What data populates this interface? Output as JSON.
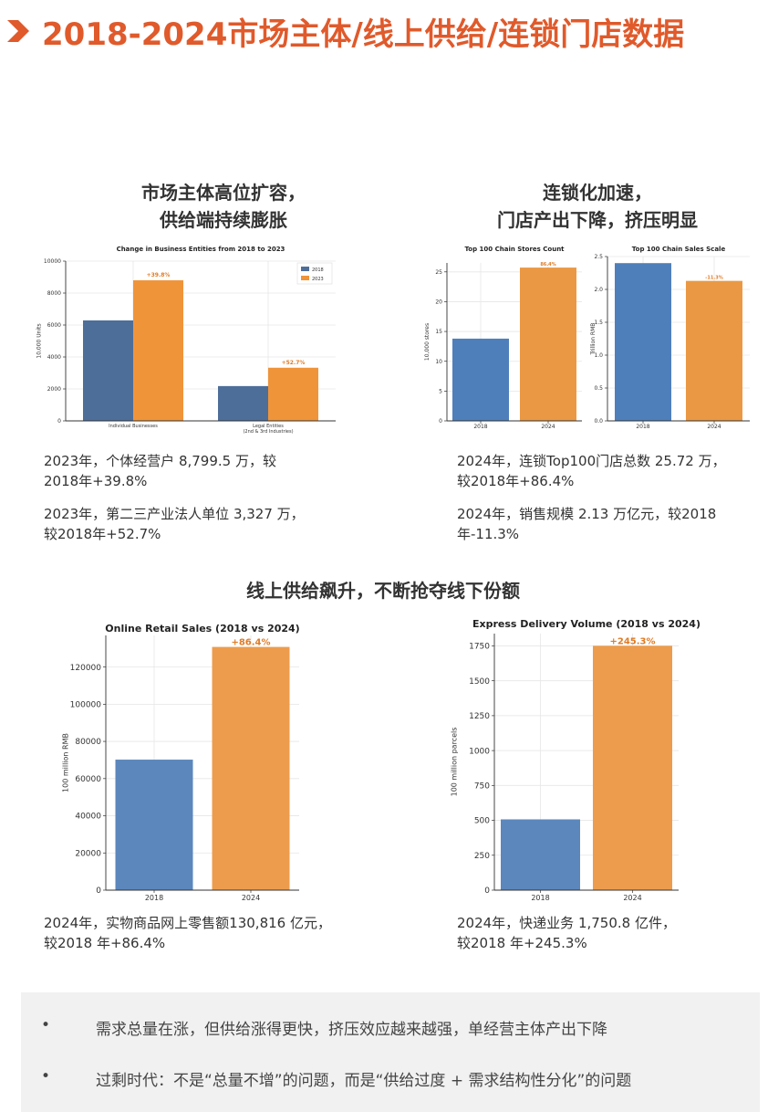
{
  "page_title": "2018-2024市场主体/线上供给/连锁门店数据",
  "sections": {
    "left_top": {
      "line1": "市场主体高位扩容，",
      "line2": "供给端持续膨胀"
    },
    "right_top": {
      "line1": "连锁化加速，",
      "line2": "门店产出下降，挤压明显"
    },
    "middle": {
      "heading": "线上供给飙升，不断抢夺线下份额"
    }
  },
  "descriptions": {
    "entities_a1": "2023年，个体经营户 8,799.5 万，较",
    "entities_a2": "2018年+39.8%",
    "entities_b1": "2023年，第二三产业法人单位 3,327 万，",
    "entities_b2": "较2018年+52.7%",
    "chain_a1": "2024年，连锁Top100门店总数 25.72 万，",
    "chain_a2": "较2018年+86.4%",
    "chain_b1": "2024年，销售规模 2.13 万亿元，较2018",
    "chain_b2": "年-11.3%",
    "retail_1": "2024年，实物商品网上零售额130,816 亿元，",
    "retail_2": "较2018 年+86.4%",
    "express_1": "2024年，快递业务 1,750.8 亿件，",
    "express_2": "较2018 年+245.3%"
  },
  "bullets": [
    "需求总量在涨，但供给涨得更快，挤压效应越来越强，单经营主体产出下降",
    "过剩时代：不是“总量不增”的问题，而是“供给过度 + 需求结构性分化”的问题"
  ],
  "colors": {
    "accent": "#e05a2b",
    "blue_dark": "#4e6e9a",
    "orange": "#f0943a",
    "blue": "#4f7fba",
    "bar_orange": "#ea9844"
  },
  "chart_data": [
    {
      "id": "entities",
      "type": "bar",
      "title": "Change in Business Entities from 2018 to 2023",
      "ylabel": "10,000 Units",
      "categories": [
        "Individual Businesses",
        "Legal Entities"
      ],
      "category_sublabels": [
        "",
        "(2nd & 3rd Industries)"
      ],
      "series": [
        {
          "name": "2018",
          "values": [
            6290,
            2179
          ]
        },
        {
          "name": "2023",
          "values": [
            8799.5,
            3327
          ]
        }
      ],
      "annotations": [
        "+39.8%",
        "+52.7%"
      ],
      "ylim": [
        0,
        10000
      ],
      "yticks": [
        0,
        2000,
        4000,
        6000,
        8000,
        10000
      ],
      "legend": "top-right",
      "grid": true
    },
    {
      "id": "stores",
      "type": "bar",
      "title": "Top 100 Chain Stores Count",
      "ylabel": "10,000 stores",
      "categories": [
        "2018",
        "2024"
      ],
      "values": [
        13.8,
        25.72
      ],
      "annotation": "86.4%",
      "ylim": [
        0,
        26.5
      ],
      "yticks": [
        0,
        5,
        10,
        15,
        20,
        25
      ],
      "grid": true
    },
    {
      "id": "sales",
      "type": "bar",
      "title": "Top 100 Chain Sales Scale",
      "ylabel": "Trillion RMB",
      "categories": [
        "2018",
        "2024"
      ],
      "values": [
        2.4,
        2.13
      ],
      "annotation": "-11.3%",
      "ylim": [
        0,
        2.5
      ],
      "yticks": [
        0.0,
        0.5,
        1.0,
        1.5,
        2.0,
        2.5
      ],
      "grid": true
    },
    {
      "id": "retail",
      "type": "bar",
      "title": "Online Retail Sales (2018 vs 2024)",
      "ylabel": "100 million RMB",
      "categories": [
        "2018",
        "2024"
      ],
      "values": [
        70198,
        130816
      ],
      "annotation": "+86.4%",
      "ylim": [
        0,
        137000
      ],
      "yticks": [
        0,
        20000,
        40000,
        60000,
        80000,
        100000,
        120000
      ],
      "grid": true
    },
    {
      "id": "express",
      "type": "bar",
      "title": "Express Delivery Volume (2018 vs 2024)",
      "ylabel": "100 million parcels",
      "categories": [
        "2018",
        "2024"
      ],
      "values": [
        507.1,
        1750.8
      ],
      "annotation": "+245.3%",
      "ylim": [
        0,
        1838
      ],
      "yticks": [
        0,
        250,
        500,
        750,
        1000,
        1250,
        1500,
        1750
      ],
      "grid": true
    }
  ]
}
